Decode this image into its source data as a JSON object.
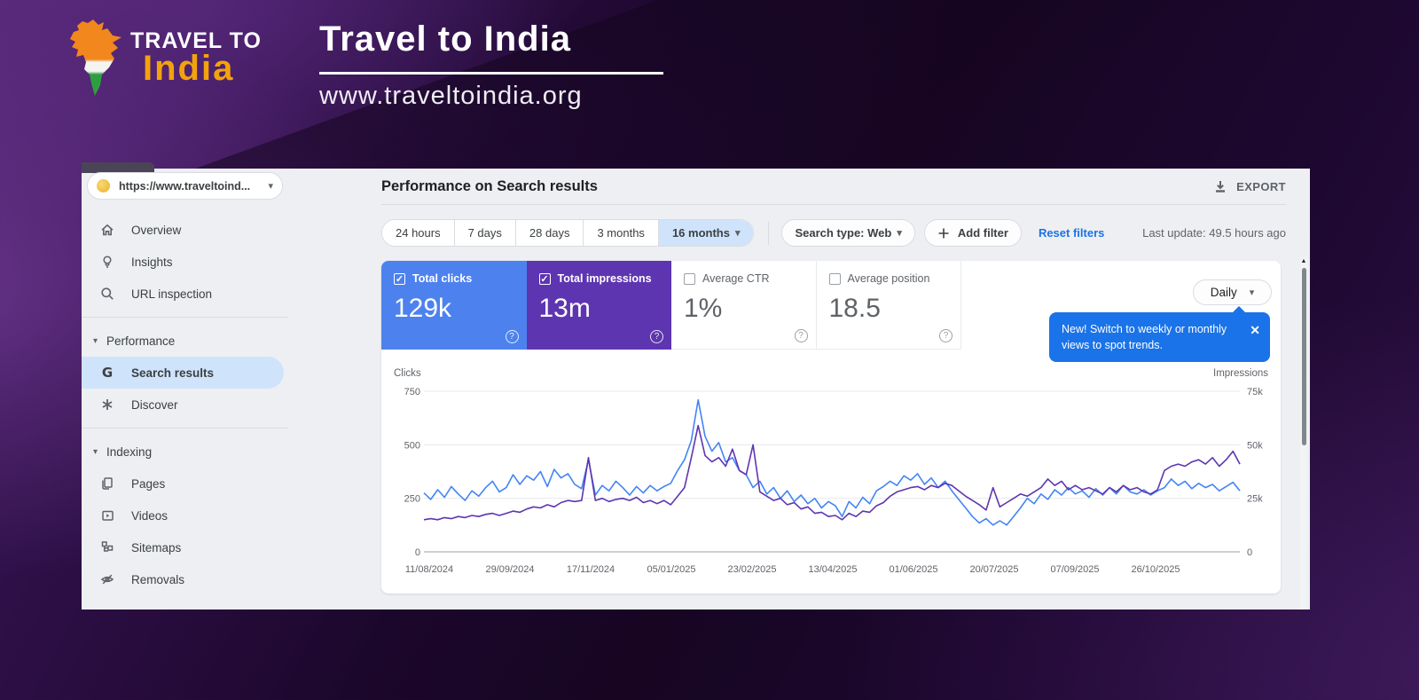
{
  "banner": {
    "brand_top": "TRAVEL TO",
    "brand_bottom": "India",
    "title": "Travel to India",
    "url": "www.traveltoindia.org"
  },
  "sidebar": {
    "property": "https://www.traveltoind...",
    "items": [
      {
        "label": "Overview",
        "icon": "home"
      },
      {
        "label": "Insights",
        "icon": "lightbulb"
      },
      {
        "label": "URL inspection",
        "icon": "search"
      },
      {
        "label": "Performance",
        "icon": "chevron-down",
        "section": true
      },
      {
        "label": "Search results",
        "icon": "google-g",
        "active": true
      },
      {
        "label": "Discover",
        "icon": "asterisk"
      },
      {
        "label": "Indexing",
        "icon": "chevron-down",
        "section": true
      },
      {
        "label": "Pages",
        "icon": "pages"
      },
      {
        "label": "Videos",
        "icon": "video"
      },
      {
        "label": "Sitemaps",
        "icon": "sitemap"
      },
      {
        "label": "Removals",
        "icon": "eye-off"
      }
    ]
  },
  "header": {
    "title": "Performance on Search results",
    "export_label": "EXPORT"
  },
  "filters": {
    "date_ranges": [
      "24 hours",
      "7 days",
      "28 days",
      "3 months"
    ],
    "selected_range": "16 months",
    "search_type": "Search type: Web",
    "add_filter": "Add filter",
    "reset_filters": "Reset filters",
    "last_update": "Last update: 49.5 hours ago"
  },
  "metrics": [
    {
      "label": "Total clicks",
      "value": "129k",
      "checked": true,
      "color": "#4d82ee"
    },
    {
      "label": "Total impressions",
      "value": "13m",
      "checked": true,
      "color": "#5e35b1"
    },
    {
      "label": "Average CTR",
      "value": "1%",
      "checked": false
    },
    {
      "label": "Average position",
      "value": "18.5",
      "checked": false
    }
  ],
  "view_selector": {
    "label": "Daily"
  },
  "tooltip": {
    "text": "New! Switch to weekly or monthly views to spot trends."
  },
  "chart_data": {
    "type": "line",
    "title": "Performance on Search results",
    "grid": true,
    "legend_position": "none",
    "x_labels": [
      "11/08/2024",
      "29/09/2024",
      "17/11/2024",
      "05/01/2025",
      "23/02/2025",
      "13/04/2025",
      "01/06/2025",
      "20/07/2025",
      "07/09/2025",
      "26/10/2025"
    ],
    "left_axis": {
      "label": "Clicks",
      "ticks": [
        "0",
        "250",
        "500",
        "750"
      ],
      "max": 750
    },
    "right_axis": {
      "label": "Impressions",
      "ticks": [
        "0",
        "25k",
        "50k",
        "75k"
      ],
      "max": 75
    },
    "series": [
      {
        "name": "Clicks",
        "axis": "left",
        "color": "#4285f4",
        "values": [
          275,
          245,
          290,
          255,
          305,
          270,
          240,
          285,
          260,
          300,
          330,
          280,
          300,
          360,
          315,
          355,
          335,
          375,
          305,
          385,
          345,
          365,
          315,
          295,
          430,
          265,
          310,
          285,
          330,
          300,
          265,
          305,
          275,
          310,
          285,
          305,
          320,
          380,
          430,
          520,
          710,
          540,
          470,
          510,
          420,
          440,
          380,
          360,
          300,
          330,
          270,
          300,
          250,
          285,
          235,
          265,
          225,
          250,
          205,
          235,
          215,
          165,
          235,
          205,
          255,
          225,
          285,
          305,
          330,
          310,
          355,
          335,
          365,
          315,
          345,
          300,
          330,
          285,
          245,
          205,
          165,
          135,
          155,
          125,
          145,
          125,
          165,
          205,
          250,
          225,
          270,
          245,
          290,
          265,
          300,
          270,
          285,
          255,
          295,
          265,
          300,
          270,
          310,
          280,
          270,
          290,
          265,
          285,
          300,
          340,
          310,
          330,
          295,
          320,
          300,
          315,
          285,
          305,
          325,
          285
        ]
      },
      {
        "name": "Impressions",
        "axis": "right",
        "unit": "k",
        "color": "#5e35b1",
        "values": [
          15,
          15.5,
          15,
          16,
          15.5,
          16.5,
          16,
          17,
          16.5,
          17.5,
          18,
          17,
          18,
          19,
          18.5,
          20,
          21,
          20.5,
          22,
          21,
          23,
          24,
          23.5,
          24,
          44,
          24,
          25,
          23.5,
          24.5,
          25,
          24,
          25.5,
          23,
          24,
          22.5,
          24,
          22,
          26,
          30,
          44,
          59,
          45,
          42,
          44,
          40,
          48,
          38,
          36,
          50,
          28,
          26,
          24,
          25,
          22,
          23,
          20,
          21,
          18,
          18.5,
          16.5,
          17,
          15,
          18,
          16.5,
          19,
          18.5,
          21.5,
          23,
          26,
          28,
          29,
          30,
          30.5,
          29,
          31,
          30,
          32,
          31,
          28.5,
          26,
          24,
          22,
          19.5,
          30,
          21,
          23,
          25,
          27,
          26,
          28,
          30,
          34,
          31,
          33,
          29,
          31,
          29,
          30,
          28.5,
          27,
          30,
          28,
          31,
          29,
          30,
          28,
          27,
          29,
          38,
          40,
          41,
          40,
          42,
          43,
          41,
          44,
          40,
          43,
          47,
          41
        ]
      }
    ]
  }
}
